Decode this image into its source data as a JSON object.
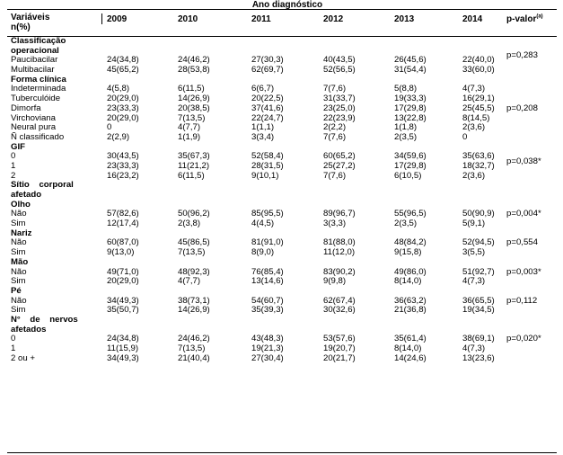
{
  "header": {
    "group_title": "Ano diagnóstico",
    "var_line1": "Variáveis",
    "var_line2": "n(%)",
    "years": [
      "2009",
      "2010",
      "2011",
      "2012",
      "2013",
      "2014"
    ],
    "pvalue_label": "p-valor",
    "pvalue_sup": "(a)"
  },
  "rows": [
    {
      "type": "sec",
      "label": "Classificação"
    },
    {
      "type": "sec",
      "label": "operacional"
    },
    {
      "type": "data",
      "label": "Paucibacilar",
      "values": [
        "24(34,8)",
        "24(46,2)",
        "27(30,3)",
        "40(43,5)",
        "26(45,6)",
        "22(40,0)"
      ],
      "p": "p=0,283",
      "p_offset": -5
    },
    {
      "type": "data",
      "label": "Multibacilar",
      "values": [
        "45(65,2)",
        "28(53,8)",
        "62(69,7)",
        "52(56,5)",
        "31(54,4)",
        "33(60,0)"
      ],
      "p": ""
    },
    {
      "type": "sec",
      "label": "Forma clínica"
    },
    {
      "type": "data",
      "label": "Indeterminada",
      "values": [
        "4(5,8)",
        "6(11,5)",
        "6(6,7)",
        "7(7,6)",
        "5(8,8)",
        "4(7,3)"
      ],
      "p": ""
    },
    {
      "type": "data",
      "label": "Tuberculóide",
      "values": [
        "20(29,0)",
        "14(26,9)",
        "20(22,5)",
        "31(33,7)",
        "19(33,3)",
        "16(29,1)"
      ],
      "p": ""
    },
    {
      "type": "data",
      "label": "Dimorfa",
      "values": [
        "23(33,3)",
        "20(38,5)",
        "37(41,6)",
        "23(25,0)",
        "17(29,8)",
        "25(45,5)"
      ],
      "p": "p=0,208",
      "p_offset": 0
    },
    {
      "type": "data",
      "label": "Virchoviana",
      "values": [
        "20(29,0)",
        "7(13,5)",
        "22(24,7)",
        "22(23,9)",
        "13(22,8)",
        "8(14,5)"
      ],
      "p": ""
    },
    {
      "type": "data",
      "label": "Neural pura",
      "values": [
        "0",
        "4(7,7)",
        "1(1,1)",
        "2(2,2)",
        "1(1,8)",
        "2(3,6)"
      ],
      "p": ""
    },
    {
      "type": "data",
      "label": "Ñ classificado",
      "values": [
        "2(2,9)",
        "1(1,9)",
        "3(3,4)",
        "7(7,6)",
        "2(3,5)",
        "0"
      ],
      "p": ""
    },
    {
      "type": "sec",
      "label": "GIF"
    },
    {
      "type": "data",
      "label": "0",
      "values": [
        "30(43,5)",
        "35(67,3)",
        "52(58,4)",
        "60(65,2)",
        "34(59,6)",
        "35(63,6)"
      ],
      "p": ""
    },
    {
      "type": "data",
      "label": "1",
      "values": [
        "23(33,3)",
        "11(21,2)",
        "28(31,5)",
        "25(27,2)",
        "17(29,8)",
        "18(32,7)"
      ],
      "p": "p=0,038*",
      "p_offset": -5
    },
    {
      "type": "data",
      "label": "2",
      "values": [
        "16(23,2)",
        "6(11,5)",
        "9(10,1)",
        "7(7,6)",
        "6(10,5)",
        "2(3,6)"
      ],
      "p": ""
    },
    {
      "type": "sec",
      "label": "Sítio    corporal"
    },
    {
      "type": "sec",
      "label": "afetado"
    },
    {
      "type": "sec",
      "label": "Olho"
    },
    {
      "type": "data",
      "label": "Não",
      "values": [
        "57(82,6)",
        "50(96,2)",
        "85(95,5)",
        "89(96,7)",
        "55(96,5)",
        "50(90,9)"
      ],
      "p": "p=0,004*",
      "p_offset": 0
    },
    {
      "type": "data",
      "label": "Sim",
      "values": [
        "12(17,4)",
        "2(3,8)",
        "4(4,5)",
        "3(3,3)",
        "2(3,5)",
        "5(9,1)"
      ],
      "p": ""
    },
    {
      "type": "sec",
      "label": "Nariz"
    },
    {
      "type": "data",
      "label": "Não",
      "values": [
        "60(87,0)",
        "45(86,5)",
        "81(91,0)",
        "81(88,0)",
        "48(84,2)",
        "52(94,5)"
      ],
      "p": "p=0,554",
      "p_offset": 0
    },
    {
      "type": "data",
      "label": "Sim",
      "values": [
        "9(13,0)",
        "7(13,5)",
        "8(9,0)",
        "11(12,0)",
        "9(15,8)",
        "3(5,5)"
      ],
      "p": ""
    },
    {
      "type": "sec",
      "label": "Mão"
    },
    {
      "type": "data",
      "label": "Não",
      "values": [
        "49(71,0)",
        "48(92,3)",
        "76(85,4)",
        "83(90,2)",
        "49(86,0)",
        "51(92,7)"
      ],
      "p": "p=0,003*",
      "p_offset": 0
    },
    {
      "type": "data",
      "label": "Sim",
      "values": [
        "20(29,0)",
        "4(7,7)",
        "13(14,6)",
        "9(9,8)",
        "8(14,0)",
        "4(7,3)"
      ],
      "p": ""
    },
    {
      "type": "sec",
      "label": "Pé"
    },
    {
      "type": "data",
      "label": "Não",
      "values": [
        "34(49,3)",
        "38(73,1)",
        "54(60,7)",
        "62(67,4)",
        "36(63,2)",
        "36(65,5)"
      ],
      "p": "p=0,112",
      "p_offset": 0
    },
    {
      "type": "data",
      "label": "Sim",
      "values": [
        "35(50,7)",
        "14(26,9)",
        "35(39,3)",
        "30(32,6)",
        "21(36,8)",
        "19(34,5)"
      ],
      "p": ""
    },
    {
      "type": "sec",
      "label": "N°    de    nervos"
    },
    {
      "type": "sec",
      "label": "afetados"
    },
    {
      "type": "data",
      "label": "0",
      "values": [
        "24(34,8)",
        "24(46,2)",
        "43(48,3)",
        "53(57,6)",
        "35(61,4)",
        "38(69,1)"
      ],
      "p": "p=0,020*",
      "p_offset": 0
    },
    {
      "type": "data",
      "label": "1",
      "values": [
        "11(15,9)",
        "7(13,5)",
        "19(21,3)",
        "19(20,7)",
        "8(14,0)",
        "4(7,3)"
      ],
      "p": ""
    },
    {
      "type": "data",
      "label": "2 ou +",
      "values": [
        "34(49,3)",
        "21(40,4)",
        "27(30,4)",
        "20(21,7)",
        "14(24,6)",
        "13(23,6)"
      ],
      "p": ""
    }
  ]
}
